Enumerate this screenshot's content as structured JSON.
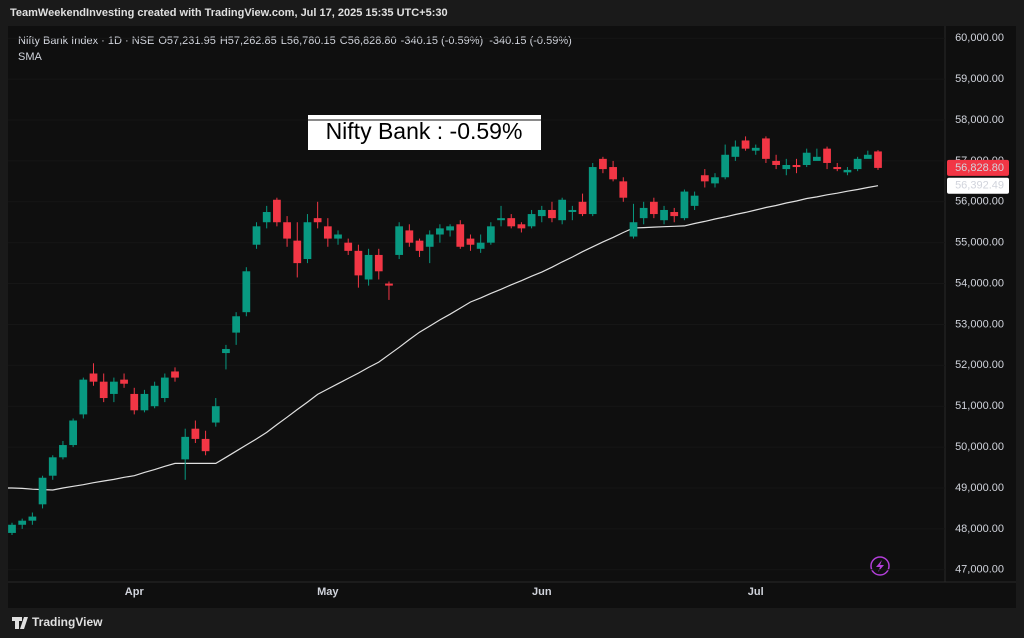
{
  "chart_data": {
    "type": "candlestick",
    "watermark": "TeamWeekendInvesting created with TradingView.com, Jul 17, 2025 15:35 UTC+5:30",
    "symbol": "Nifty Bank Index · 1D · NSE",
    "ohlc": [
      {
        "key": "O",
        "value": "57,231.95"
      },
      {
        "key": "H",
        "value": "57,262.85"
      },
      {
        "key": "L",
        "value": "56,780.15"
      },
      {
        "key": "C",
        "value": "56,828.80"
      }
    ],
    "change": "-340.15 (-0.59%)",
    "change2": "-340.15 (-0.59%)",
    "indicator": "SMA",
    "annotation": "Nifty Bank : -0.59%",
    "brand": "TradingView",
    "categories": [
      null,
      null,
      null,
      null,
      null,
      null,
      null,
      null,
      null,
      null,
      null,
      null,
      "Apr",
      null,
      null,
      null,
      null,
      null,
      null,
      null,
      null,
      null,
      null,
      null,
      null,
      null,
      null,
      null,
      null,
      null,
      null,
      "May",
      null,
      null,
      null,
      null,
      null,
      null,
      null,
      null,
      null,
      null,
      null,
      null,
      null,
      null,
      null,
      null,
      null,
      null,
      null,
      null,
      "Jun",
      null,
      null,
      null,
      null,
      null,
      null,
      null,
      null,
      null,
      null,
      null,
      null,
      null,
      null,
      null,
      null,
      null,
      null,
      null,
      null,
      "Jul",
      null,
      null,
      null,
      null,
      null,
      null,
      null,
      null,
      null,
      null,
      null,
      null
    ],
    "open": [
      47900,
      48100,
      48200,
      48600,
      49300,
      49750,
      50050,
      50800,
      51800,
      51600,
      51300,
      51650,
      51300,
      50900,
      51000,
      51200,
      51850,
      49700,
      50450,
      50200,
      50600,
      52300,
      52800,
      53300,
      54950,
      55500,
      56050,
      55500,
      55050,
      54600,
      55600,
      55400,
      55100,
      55000,
      54800,
      54100,
      54700,
      54000,
      54700,
      55300,
      55050,
      54900,
      55200,
      55300,
      55450,
      55100,
      54850,
      55000,
      55550,
      55600,
      55450,
      55400,
      55650,
      55800,
      55550,
      55750,
      56000,
      55700,
      57050,
      56850,
      56500,
      55150,
      55600,
      56000,
      55550,
      55750,
      55600,
      55900,
      56650,
      56450,
      56600,
      57100,
      57500,
      57250,
      57550,
      57000,
      56800,
      56900,
      56900,
      57000,
      57300,
      56850,
      56720,
      56800,
      57050,
      57231.95
    ],
    "high": [
      48150,
      48250,
      48400,
      49300,
      49800,
      50150,
      50700,
      51700,
      52050,
      51800,
      51700,
      51800,
      51450,
      51400,
      51600,
      51800,
      51950,
      50450,
      50650,
      50400,
      51200,
      52500,
      53300,
      54400,
      55500,
      55900,
      56100,
      55650,
      55500,
      55700,
      56000,
      55600,
      55300,
      55100,
      54950,
      54850,
      54850,
      54050,
      55500,
      55450,
      55100,
      55300,
      55450,
      55450,
      55550,
      55200,
      55200,
      55500,
      55900,
      55700,
      55500,
      55800,
      55900,
      56000,
      56100,
      55900,
      56200,
      56950,
      57100,
      57000,
      56600,
      55950,
      56000,
      56100,
      55900,
      55850,
      56300,
      56250,
      56800,
      56700,
      57400,
      57500,
      57600,
      57400,
      57600,
      57150,
      57050,
      57050,
      57300,
      57300,
      57350,
      56950,
      56850,
      57100,
      57250,
      57262.85
    ],
    "low": [
      47850,
      48000,
      48100,
      48500,
      49200,
      49700,
      50000,
      50700,
      51500,
      51100,
      51100,
      51450,
      50800,
      50850,
      50950,
      51100,
      51600,
      49200,
      50100,
      49800,
      50500,
      51900,
      52500,
      53200,
      54850,
      55350,
      55400,
      54900,
      54150,
      54500,
      55350,
      54900,
      54950,
      54700,
      53900,
      53950,
      54100,
      53600,
      54600,
      54900,
      54650,
      54500,
      55000,
      55150,
      54850,
      54800,
      54750,
      54950,
      55400,
      55350,
      55250,
      55350,
      55500,
      55500,
      55450,
      55550,
      55650,
      55650,
      56700,
      56500,
      56000,
      55100,
      55450,
      55600,
      55450,
      55500,
      55550,
      55800,
      56350,
      56350,
      56550,
      57000,
      57250,
      57150,
      56950,
      56800,
      56650,
      56700,
      56850,
      57050,
      56800,
      56750,
      56650,
      56750,
      57100,
      56780.15
    ],
    "close": [
      48100,
      48200,
      48300,
      49250,
      49750,
      50050,
      50650,
      51650,
      51600,
      51200,
      51600,
      51550,
      50900,
      51300,
      51500,
      51700,
      51700,
      50250,
      50200,
      49900,
      51000,
      52400,
      53200,
      54300,
      55400,
      55750,
      55500,
      55100,
      54500,
      55500,
      55500,
      55100,
      55200,
      54800,
      54200,
      54700,
      54300,
      53950,
      55400,
      55000,
      54800,
      55200,
      55350,
      55400,
      54900,
      54950,
      55000,
      55400,
      55600,
      55400,
      55350,
      55700,
      55800,
      55600,
      56050,
      55800,
      55700,
      56850,
      56800,
      56550,
      56100,
      55500,
      55850,
      55700,
      55800,
      55650,
      56250,
      56150,
      56500,
      56600,
      57150,
      57350,
      57300,
      57320,
      57050,
      56900,
      56900,
      56850,
      57200,
      57100,
      56950,
      56800,
      56780,
      57050,
      57150,
      56828.8
    ],
    "sma": {
      "name": "SMA",
      "color": "#e0e0e0",
      "values": [
        49000,
        48990,
        48970,
        48960,
        48950,
        49000,
        49040,
        49080,
        49130,
        49170,
        49210,
        49260,
        49300,
        49380,
        49450,
        49530,
        49600,
        49600,
        49600,
        49600,
        49600,
        49750,
        49900,
        50050,
        50200,
        50360,
        50550,
        50730,
        50920,
        51100,
        51290,
        51420,
        51550,
        51680,
        51810,
        51950,
        52080,
        52260,
        52440,
        52630,
        52810,
        52960,
        53110,
        53250,
        53400,
        53550,
        53650,
        53760,
        53860,
        53970,
        54070,
        54180,
        54280,
        54400,
        54530,
        54650,
        54780,
        54900,
        55020,
        55130,
        55250,
        55360,
        55370,
        55380,
        55390,
        55400,
        55410,
        55470,
        55520,
        55580,
        55630,
        55690,
        55740,
        55800,
        55860,
        55910,
        55970,
        56020,
        56080,
        56120,
        56170,
        56210,
        56260,
        56300,
        56350,
        56392.49
      ]
    },
    "up_color": "#089981",
    "down_color": "#f23645",
    "ylim": [
      46700,
      60300
    ],
    "yticks": [
      {
        "value": 47000,
        "label": "47,000.00"
      },
      {
        "value": 48000,
        "label": "48,000.00"
      },
      {
        "value": 49000,
        "label": "49,000.00"
      },
      {
        "value": 50000,
        "label": "50,000.00"
      },
      {
        "value": 51000,
        "label": "51,000.00"
      },
      {
        "value": 52000,
        "label": "52,000.00"
      },
      {
        "value": 53000,
        "label": "53,000.00"
      },
      {
        "value": 54000,
        "label": "54,000.00"
      },
      {
        "value": 55000,
        "label": "55,000.00"
      },
      {
        "value": 56000,
        "label": "56,000.00"
      },
      {
        "value": 57000,
        "label": "57,000.00"
      },
      {
        "value": 58000,
        "label": "58,000.00"
      },
      {
        "value": 59000,
        "label": "59,000.00"
      },
      {
        "value": 60000,
        "label": "60,000.00"
      }
    ],
    "last_price": {
      "value": 56828.8,
      "label": "56,828.80"
    },
    "sma_last": {
      "value": 56392.49,
      "label": "56,392.49"
    }
  }
}
